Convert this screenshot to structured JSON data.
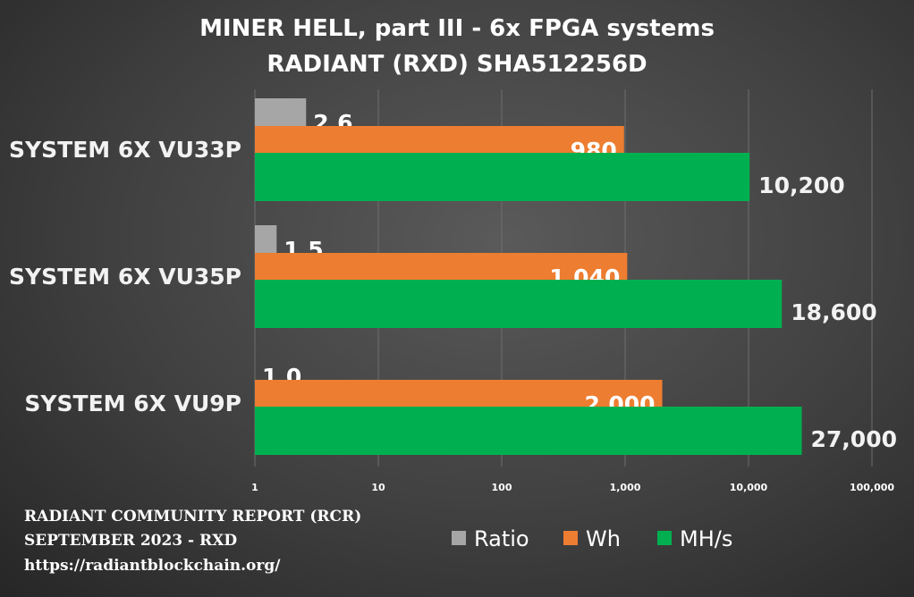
{
  "chart_data": {
    "type": "bar",
    "orientation": "horizontal",
    "title": "MINER HELL, part III - 6x FPGA systems",
    "subtitle": "RADIANT (RXD) SHA512256D",
    "x_scale": "log",
    "xlim": [
      1,
      100000
    ],
    "x_ticks": [
      "1",
      "10",
      "100",
      "1,000",
      "10,000",
      "100,000"
    ],
    "categories": [
      "SYSTEM 6X VU33P",
      "SYSTEM 6X VU35P",
      "SYSTEM 6X VU9P"
    ],
    "series": [
      {
        "name": "Ratio",
        "color": "#a6a6a6",
        "values": [
          2.6,
          1.5,
          1.0
        ],
        "labels": [
          "2.6",
          "1.5",
          "1.0"
        ]
      },
      {
        "name": "Wh",
        "color": "#ed7d31",
        "values": [
          980,
          1040,
          2000
        ],
        "labels": [
          "980",
          "1,040",
          "2,000"
        ]
      },
      {
        "name": "MH/s",
        "color": "#00b050",
        "values": [
          10200,
          18600,
          27000
        ],
        "labels": [
          "10,200",
          "18,600",
          "27,000"
        ]
      }
    ],
    "legend_position": "bottom-right",
    "grid": "vertical"
  },
  "footer": {
    "line1": "RADIANT COMMUNITY REPORT (RCR)",
    "line2": "SEPTEMBER 2023 - RXD",
    "line3": "https://radiantblockchain.org/"
  }
}
